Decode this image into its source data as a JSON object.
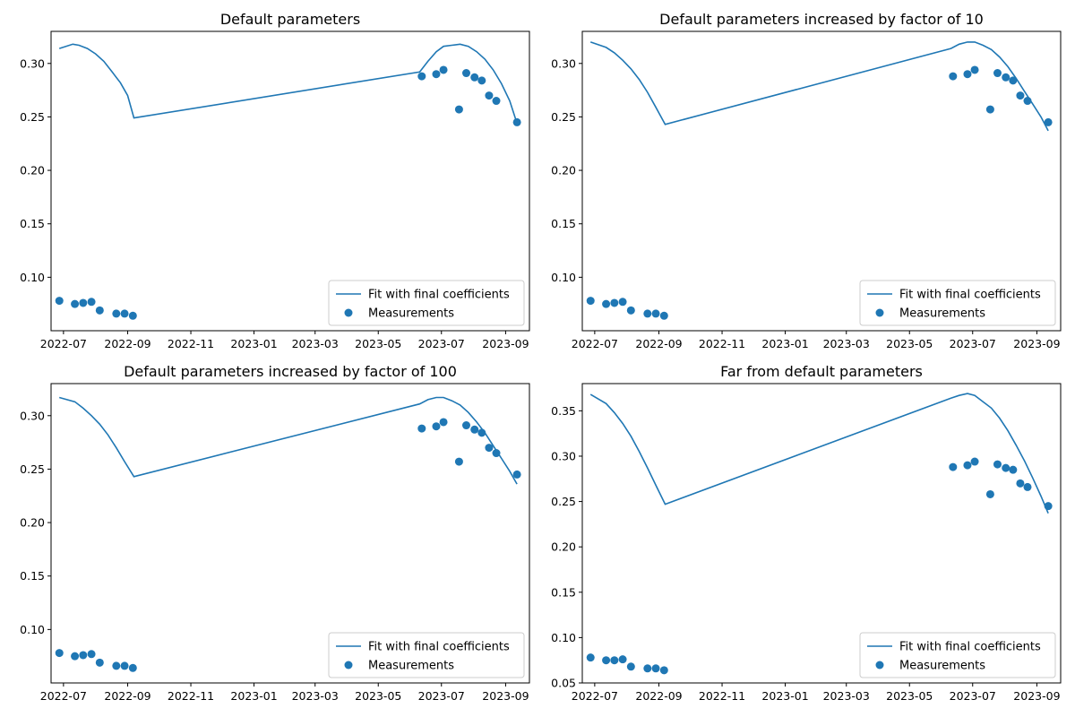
{
  "chart_data": [
    {
      "type": "line",
      "title": "Default parameters",
      "xlabel": "",
      "ylabel": "",
      "xlim": [
        "2022-06-19",
        "2023-09-24"
      ],
      "ylim": [
        0.05,
        0.33
      ],
      "x_ticks": [
        "2022-07",
        "2022-09",
        "2022-11",
        "2023-01",
        "2023-03",
        "2023-05",
        "2023-07",
        "2023-09"
      ],
      "y_ticks": [
        0.1,
        0.15,
        0.2,
        0.25,
        0.3
      ],
      "y_tick_labels": [
        "0.10",
        "0.15",
        "0.20",
        "0.25",
        "0.30"
      ],
      "legend": "lower-right",
      "series": [
        {
          "name": "Fit with final coefficients",
          "kind": "line",
          "color": "#1f77b4",
          "x": [
            "2022-06-27",
            "2022-07-10",
            "2022-07-16",
            "2022-07-24",
            "2022-08-01",
            "2022-08-09",
            "2022-08-17",
            "2022-08-25",
            "2022-09-01",
            "2022-09-07",
            "2023-06-10",
            "2023-06-18",
            "2023-06-26",
            "2023-07-03",
            "2023-07-11",
            "2023-07-19",
            "2023-07-27",
            "2023-08-04",
            "2023-08-12",
            "2023-08-20",
            "2023-08-28",
            "2023-09-05",
            "2023-09-12"
          ],
          "y": [
            0.314,
            0.318,
            0.317,
            0.314,
            0.309,
            0.302,
            0.292,
            0.282,
            0.27,
            0.249,
            0.292,
            0.302,
            0.311,
            0.316,
            0.317,
            0.318,
            0.316,
            0.311,
            0.304,
            0.294,
            0.281,
            0.265,
            0.244
          ]
        },
        {
          "name": "Measurements",
          "kind": "scatter",
          "color": "#1f77b4",
          "x": [
            "2022-06-27",
            "2022-07-12",
            "2022-07-20",
            "2022-07-28",
            "2022-08-05",
            "2022-08-21",
            "2022-08-29",
            "2022-09-06",
            "2023-06-12",
            "2023-06-26",
            "2023-07-03",
            "2023-07-18",
            "2023-07-25",
            "2023-08-02",
            "2023-08-09",
            "2023-08-16",
            "2023-08-23",
            "2023-09-12"
          ],
          "y": [
            0.078,
            0.075,
            0.076,
            0.077,
            0.069,
            0.066,
            0.066,
            0.064,
            0.288,
            0.29,
            0.294,
            0.257,
            0.291,
            0.287,
            0.284,
            0.27,
            0.265,
            0.245
          ]
        }
      ]
    },
    {
      "type": "line",
      "title": "Default parameters increased by factor of 10",
      "xlabel": "",
      "ylabel": "",
      "xlim": [
        "2022-06-19",
        "2023-09-24"
      ],
      "ylim": [
        0.05,
        0.33
      ],
      "x_ticks": [
        "2022-07",
        "2022-09",
        "2022-11",
        "2023-01",
        "2023-03",
        "2023-05",
        "2023-07",
        "2023-09"
      ],
      "y_ticks": [
        0.1,
        0.15,
        0.2,
        0.25,
        0.3
      ],
      "y_tick_labels": [
        "0.10",
        "0.15",
        "0.20",
        "0.25",
        "0.30"
      ],
      "legend": "lower-right",
      "series": [
        {
          "name": "Fit with final coefficients",
          "kind": "line",
          "color": "#1f77b4",
          "x": [
            "2022-06-27",
            "2022-07-12",
            "2022-07-20",
            "2022-07-28",
            "2022-08-05",
            "2022-08-13",
            "2022-08-21",
            "2022-08-29",
            "2022-09-07",
            "2023-06-10",
            "2023-06-18",
            "2023-06-26",
            "2023-07-03",
            "2023-07-11",
            "2023-07-19",
            "2023-07-27",
            "2023-08-04",
            "2023-08-12",
            "2023-08-20",
            "2023-08-28",
            "2023-09-05",
            "2023-09-12"
          ],
          "y": [
            0.32,
            0.315,
            0.31,
            0.303,
            0.295,
            0.285,
            0.273,
            0.259,
            0.243,
            0.314,
            0.318,
            0.32,
            0.32,
            0.317,
            0.313,
            0.306,
            0.297,
            0.286,
            0.274,
            0.262,
            0.25,
            0.237
          ]
        },
        {
          "name": "Measurements",
          "kind": "scatter",
          "color": "#1f77b4",
          "x": [
            "2022-06-27",
            "2022-07-12",
            "2022-07-20",
            "2022-07-28",
            "2022-08-05",
            "2022-08-21",
            "2022-08-29",
            "2022-09-06",
            "2023-06-12",
            "2023-06-26",
            "2023-07-03",
            "2023-07-18",
            "2023-07-25",
            "2023-08-02",
            "2023-08-09",
            "2023-08-16",
            "2023-08-23",
            "2023-09-12"
          ],
          "y": [
            0.078,
            0.075,
            0.076,
            0.077,
            0.069,
            0.066,
            0.066,
            0.064,
            0.288,
            0.29,
            0.294,
            0.257,
            0.291,
            0.287,
            0.284,
            0.27,
            0.265,
            0.245
          ]
        }
      ]
    },
    {
      "type": "line",
      "title": "Default parameters increased by factor of 100",
      "xlabel": "",
      "ylabel": "",
      "xlim": [
        "2022-06-19",
        "2023-09-24"
      ],
      "ylim": [
        0.05,
        0.33
      ],
      "x_ticks": [
        "2022-07",
        "2022-09",
        "2022-11",
        "2023-01",
        "2023-03",
        "2023-05",
        "2023-07",
        "2023-09"
      ],
      "y_ticks": [
        0.1,
        0.15,
        0.2,
        0.25,
        0.3
      ],
      "y_tick_labels": [
        "0.10",
        "0.15",
        "0.20",
        "0.25",
        "0.30"
      ],
      "legend": "lower-right",
      "series": [
        {
          "name": "Fit with final coefficients",
          "kind": "line",
          "color": "#1f77b4",
          "x": [
            "2022-06-27",
            "2022-07-12",
            "2022-07-20",
            "2022-07-28",
            "2022-08-05",
            "2022-08-13",
            "2022-08-21",
            "2022-08-29",
            "2022-09-07",
            "2023-06-10",
            "2023-06-18",
            "2023-06-26",
            "2023-07-03",
            "2023-07-11",
            "2023-07-19",
            "2023-07-27",
            "2023-08-04",
            "2023-08-12",
            "2023-08-20",
            "2023-08-28",
            "2023-09-05",
            "2023-09-12"
          ],
          "y": [
            0.317,
            0.313,
            0.307,
            0.3,
            0.292,
            0.282,
            0.27,
            0.257,
            0.243,
            0.311,
            0.315,
            0.317,
            0.317,
            0.314,
            0.31,
            0.303,
            0.294,
            0.284,
            0.272,
            0.26,
            0.248,
            0.236
          ]
        },
        {
          "name": "Measurements",
          "kind": "scatter",
          "color": "#1f77b4",
          "x": [
            "2022-06-27",
            "2022-07-12",
            "2022-07-20",
            "2022-07-28",
            "2022-08-05",
            "2022-08-21",
            "2022-08-29",
            "2022-09-06",
            "2023-06-12",
            "2023-06-26",
            "2023-07-03",
            "2023-07-18",
            "2023-07-25",
            "2023-08-02",
            "2023-08-09",
            "2023-08-16",
            "2023-08-23",
            "2023-09-12"
          ],
          "y": [
            0.078,
            0.075,
            0.076,
            0.077,
            0.069,
            0.066,
            0.066,
            0.064,
            0.288,
            0.29,
            0.294,
            0.257,
            0.291,
            0.287,
            0.284,
            0.27,
            0.265,
            0.245
          ]
        }
      ]
    },
    {
      "type": "line",
      "title": "Far from default parameters",
      "xlabel": "",
      "ylabel": "",
      "xlim": [
        "2022-06-19",
        "2023-09-24"
      ],
      "ylim": [
        0.05,
        0.38
      ],
      "x_ticks": [
        "2022-07",
        "2022-09",
        "2022-11",
        "2023-01",
        "2023-03",
        "2023-05",
        "2023-07",
        "2023-09"
      ],
      "y_ticks": [
        0.05,
        0.1,
        0.15,
        0.2,
        0.25,
        0.3,
        0.35
      ],
      "y_tick_labels": [
        "0.05",
        "0.10",
        "0.15",
        "0.20",
        "0.25",
        "0.30",
        "0.35"
      ],
      "legend": "lower-right",
      "series": [
        {
          "name": "Fit with final coefficients",
          "kind": "line",
          "color": "#1f77b4",
          "x": [
            "2022-06-27",
            "2022-07-12",
            "2022-07-20",
            "2022-07-28",
            "2022-08-05",
            "2022-08-13",
            "2022-08-21",
            "2022-08-29",
            "2022-09-07",
            "2023-06-10",
            "2023-06-18",
            "2023-06-26",
            "2023-07-03",
            "2023-07-11",
            "2023-07-19",
            "2023-07-27",
            "2023-08-04",
            "2023-08-12",
            "2023-08-20",
            "2023-08-28",
            "2023-09-05",
            "2023-09-12"
          ],
          "y": [
            0.368,
            0.358,
            0.348,
            0.336,
            0.322,
            0.305,
            0.287,
            0.268,
            0.247,
            0.364,
            0.367,
            0.369,
            0.367,
            0.36,
            0.353,
            0.342,
            0.328,
            0.312,
            0.295,
            0.276,
            0.256,
            0.237
          ]
        },
        {
          "name": "Measurements",
          "kind": "scatter",
          "color": "#1f77b4",
          "x": [
            "2022-06-27",
            "2022-07-12",
            "2022-07-20",
            "2022-07-28",
            "2022-08-05",
            "2022-08-21",
            "2022-08-29",
            "2022-09-06",
            "2023-06-12",
            "2023-06-26",
            "2023-07-03",
            "2023-07-18",
            "2023-07-25",
            "2023-08-02",
            "2023-08-09",
            "2023-08-16",
            "2023-08-23",
            "2023-09-12"
          ],
          "y": [
            0.078,
            0.075,
            0.075,
            0.076,
            0.068,
            0.066,
            0.066,
            0.064,
            0.288,
            0.29,
            0.294,
            0.258,
            0.291,
            0.287,
            0.285,
            0.27,
            0.266,
            0.245
          ]
        }
      ]
    }
  ]
}
